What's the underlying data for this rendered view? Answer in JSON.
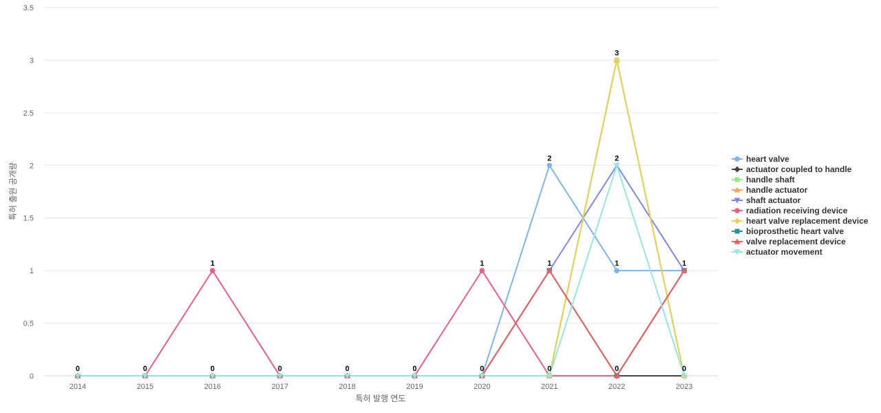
{
  "chart_data": {
    "type": "line",
    "xlabel": "특허 발행 연도",
    "ylabel": "특허 출원 공개량",
    "ylim": [
      0,
      3.5
    ],
    "yticks": [
      "0",
      "0.5",
      "1",
      "1.5",
      "2",
      "2.5",
      "3",
      "3.5"
    ],
    "categories": [
      "2014",
      "2015",
      "2016",
      "2017",
      "2018",
      "2019",
      "2020",
      "2021",
      "2022",
      "2023"
    ],
    "grid": true,
    "legend_position": "right",
    "series": [
      {
        "name": "heart valve",
        "color": "#7cb5ec",
        "marker": "circle",
        "values": [
          0,
          0,
          0,
          0,
          0,
          0,
          0,
          2,
          1,
          1
        ]
      },
      {
        "name": "actuator coupled to handle",
        "color": "#434348",
        "marker": "diamond",
        "values": [
          0,
          0,
          0,
          0,
          0,
          0,
          0,
          0,
          0,
          0
        ]
      },
      {
        "name": "handle shaft",
        "color": "#90ed7d",
        "marker": "square",
        "values": [
          0,
          0,
          0,
          0,
          0,
          0,
          0,
          0,
          3,
          0
        ]
      },
      {
        "name": "handle actuator",
        "color": "#f7a35c",
        "marker": "triangle",
        "values": [
          0,
          0,
          0,
          0,
          0,
          0,
          0,
          0,
          3,
          0
        ]
      },
      {
        "name": "shaft actuator",
        "color": "#8085e9",
        "marker": "triangle-down",
        "values": [
          0,
          0,
          0,
          0,
          0,
          0,
          0,
          1,
          2,
          1
        ]
      },
      {
        "name": "radiation receiving device",
        "color": "#f15c80",
        "marker": "circle",
        "values": [
          0,
          0,
          1,
          0,
          0,
          0,
          1,
          0,
          0,
          1
        ]
      },
      {
        "name": "heart valve replacement device",
        "color": "#e4d354",
        "marker": "diamond",
        "values": [
          0,
          0,
          0,
          0,
          0,
          0,
          0,
          0,
          3,
          0
        ]
      },
      {
        "name": "bioprosthetic heart valve",
        "color": "#2b908f",
        "marker": "square",
        "values": [
          0,
          0,
          0,
          0,
          0,
          0,
          0,
          1,
          0,
          1
        ]
      },
      {
        "name": "valve replacement device",
        "color": "#f45b5b",
        "marker": "triangle",
        "values": [
          0,
          0,
          0,
          0,
          0,
          0,
          0,
          1,
          0,
          1
        ]
      },
      {
        "name": "actuator movement",
        "color": "#91e8e1",
        "marker": "triangle-down",
        "values": [
          0,
          0,
          0,
          0,
          0,
          0,
          0,
          0,
          2,
          0
        ]
      }
    ],
    "data_labels": [
      {
        "x": "2014",
        "text": "0",
        "value": 0
      },
      {
        "x": "2015",
        "text": "0",
        "value": 0
      },
      {
        "x": "2016",
        "text": "1",
        "value": 1
      },
      {
        "x": "2016",
        "text": "0",
        "value": 0
      },
      {
        "x": "2017",
        "text": "0",
        "value": 0
      },
      {
        "x": "2018",
        "text": "0",
        "value": 0
      },
      {
        "x": "2019",
        "text": "0",
        "value": 0
      },
      {
        "x": "2020",
        "text": "1",
        "value": 1
      },
      {
        "x": "2020",
        "text": "0",
        "value": 0
      },
      {
        "x": "2021",
        "text": "2",
        "value": 2
      },
      {
        "x": "2021",
        "text": "1",
        "value": 1
      },
      {
        "x": "2021",
        "text": "0",
        "value": 0
      },
      {
        "x": "2022",
        "text": "3",
        "value": 3
      },
      {
        "x": "2022",
        "text": "2",
        "value": 2
      },
      {
        "x": "2022",
        "text": "1",
        "value": 1
      },
      {
        "x": "2022",
        "text": "0",
        "value": 0
      },
      {
        "x": "2023",
        "text": "1",
        "value": 1
      },
      {
        "x": "2023",
        "text": "0",
        "value": 0
      }
    ]
  }
}
